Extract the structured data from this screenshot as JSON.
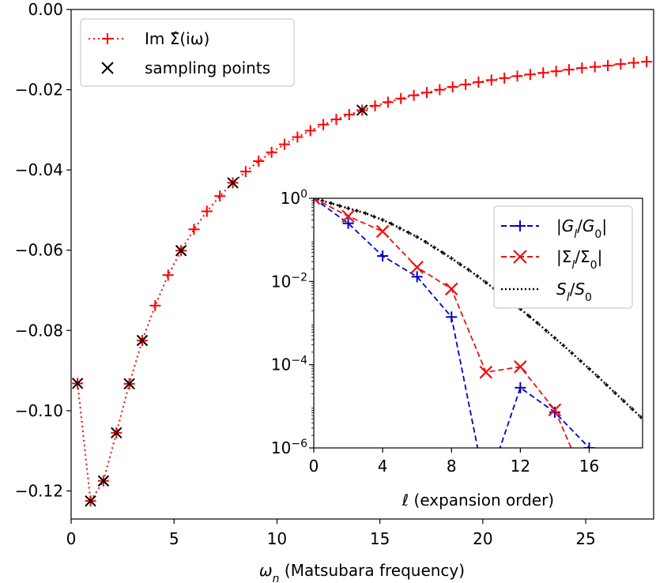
{
  "chart_data": [
    {
      "type": "line",
      "xlabel": "ωₙ (Matsubara frequency)",
      "ylabel": "",
      "xlim": [
        0,
        28.3
      ],
      "ylim": [
        -0.127,
        0.0
      ],
      "xticks": [
        0,
        5,
        10,
        15,
        20,
        25
      ],
      "xtick_labels": [
        "0",
        "5",
        "10",
        "15",
        "20",
        "25"
      ],
      "yticks": [
        0.0,
        -0.02,
        -0.04,
        -0.06,
        -0.08,
        -0.1,
        -0.12
      ],
      "ytick_labels": [
        "0.00",
        "−0.02",
        "−0.04",
        "−0.06",
        "−0.08",
        "−0.10",
        "−0.12"
      ],
      "legend_position": "top-left",
      "series": [
        {
          "name": "Im Σ̂(iω)",
          "style": "dotted-plus",
          "color": "#ff0000",
          "x": [
            0.314,
            0.942,
            1.571,
            2.199,
            2.827,
            3.456,
            4.084,
            4.712,
            5.341,
            5.969,
            6.597,
            7.226,
            7.854,
            8.482,
            9.111,
            9.739,
            10.367,
            10.996,
            11.624,
            12.252,
            12.881,
            13.509,
            14.137,
            14.765,
            15.394,
            16.022,
            16.65,
            17.279,
            17.907,
            18.535,
            19.164,
            19.792,
            20.42,
            21.049,
            21.677,
            22.305,
            22.934,
            23.562,
            24.19,
            24.819,
            25.447,
            26.075,
            26.704,
            27.332,
            27.96
          ],
          "y": [
            -0.0932,
            -0.1225,
            -0.1175,
            -0.1055,
            -0.0933,
            -0.0825,
            -0.0738,
            -0.0662,
            -0.0601,
            -0.0548,
            -0.0503,
            -0.0465,
            -0.0432,
            -0.0404,
            -0.0378,
            -0.0356,
            -0.0336,
            -0.0318,
            -0.0302,
            -0.0287,
            -0.0274,
            -0.0262,
            -0.0251,
            -0.024,
            -0.0231,
            -0.0222,
            -0.0214,
            -0.0207,
            -0.02,
            -0.0193,
            -0.0187,
            -0.0181,
            -0.0176,
            -0.0171,
            -0.0166,
            -0.0162,
            -0.0158,
            -0.0154,
            -0.015,
            -0.0146,
            -0.0143,
            -0.014,
            -0.0136,
            -0.0133,
            -0.013
          ]
        },
        {
          "name": "sampling points",
          "style": "x-marker",
          "color": "#000000",
          "x": [
            0.314,
            0.942,
            1.571,
            2.199,
            2.827,
            3.456,
            5.341,
            7.854,
            14.137
          ],
          "y": [
            -0.0932,
            -0.1225,
            -0.1175,
            -0.1055,
            -0.0933,
            -0.0825,
            -0.0601,
            -0.0432,
            -0.0251
          ]
        }
      ]
    },
    {
      "type": "line",
      "xlabel": "ℓ (expansion order)",
      "ylabel": "",
      "yscale": "log",
      "xlim": [
        0,
        19.1
      ],
      "ylim": [
        1e-06,
        1
      ],
      "xticks": [
        0,
        4,
        8,
        12,
        16
      ],
      "xtick_labels": [
        "0",
        "4",
        "8",
        "12",
        "16"
      ],
      "yticks": [
        1,
        0.01,
        0.0001,
        1e-06
      ],
      "ytick_labels": [
        {
          "base": "10",
          "exp": "0"
        },
        {
          "base": "10",
          "exp": "−2"
        },
        {
          "base": "10",
          "exp": "−4"
        },
        {
          "base": "10",
          "exp": "−6"
        }
      ],
      "legend_position": "top-right",
      "series": [
        {
          "name": "|G_l/G_0|",
          "style": "dashed-plus",
          "color": "#0000cc",
          "x": [
            0,
            2,
            4,
            6,
            8,
            10,
            12,
            14,
            16
          ],
          "y": [
            1,
            0.25,
            0.041,
            0.013,
            0.0014,
            1e-07,
            2.8e-05,
            7.2e-06,
            1e-06
          ]
        },
        {
          "name": "|Σ_l/Σ_0|",
          "style": "dashed-x",
          "color": "#ee1111",
          "x": [
            0,
            2,
            4,
            6,
            8,
            10,
            12,
            14,
            16
          ],
          "y": [
            1,
            0.37,
            0.16,
            0.022,
            0.0066,
            6.6e-05,
            8.9e-05,
            8.2e-06,
            1e-07
          ]
        },
        {
          "name": "S_l/S_0",
          "style": "dotted-small-plus",
          "color": "#000000",
          "x": [
            0,
            0.5,
            1,
            1.5,
            2,
            2.5,
            3,
            3.5,
            4,
            4.5,
            5,
            5.5,
            6,
            6.5,
            7,
            7.5,
            8,
            8.5,
            9,
            9.5,
            10,
            10.5,
            11,
            11.5,
            12,
            12.5,
            13,
            13.5,
            14,
            14.5,
            15,
            15.5,
            16,
            16.5,
            17,
            17.5,
            18,
            18.5,
            19
          ],
          "y": [
            1,
            0.871,
            0.759,
            0.661,
            0.575,
            0.501,
            0.437,
            0.363,
            0.302,
            0.245,
            0.191,
            0.15,
            0.118,
            0.089,
            0.066,
            0.049,
            0.036,
            0.026,
            0.019,
            0.0135,
            0.0095,
            0.0066,
            0.0046,
            0.0032,
            0.0022,
            0.00148,
            0.001,
            0.00066,
            0.00044,
            0.00029,
            0.00019,
            0.000123,
            8e-05,
            5.2e-05,
            3.3e-05,
            2.1e-05,
            1.35e-05,
            8.6e-06,
            5.5e-06
          ]
        }
      ]
    }
  ]
}
